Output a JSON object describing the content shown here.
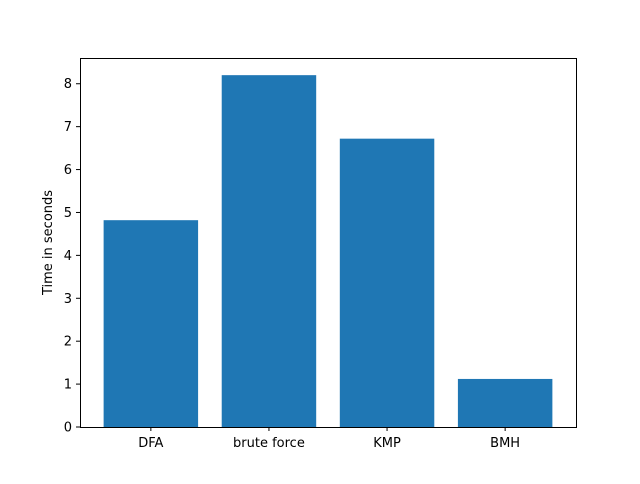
{
  "chart_data": {
    "type": "bar",
    "title": "",
    "xlabel": "",
    "ylabel": "Time in seconds",
    "categories": [
      "DFA",
      "brute force",
      "KMP",
      "BMH"
    ],
    "values": [
      4.82,
      8.2,
      6.72,
      1.12
    ],
    "ylim": [
      0,
      8.6
    ],
    "yticks": [
      0,
      1,
      2,
      3,
      4,
      5,
      6,
      7,
      8
    ],
    "grid": false,
    "legend": "none",
    "bar_color": "#1f77b4"
  }
}
